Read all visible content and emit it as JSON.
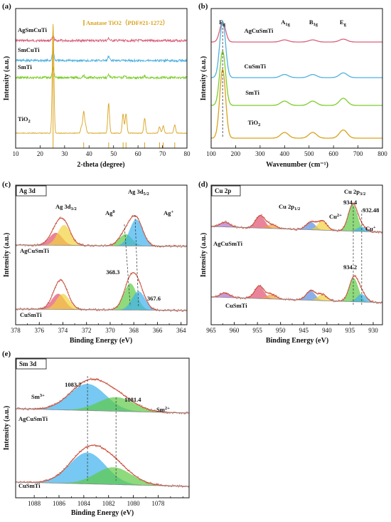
{
  "panels": {
    "a": {
      "letter": "(a)",
      "xlabel": "2-theta (degree)",
      "ylabel": "Intensity (a.u.)",
      "legend": "Anatase TiO2（PDF#21-1272）"
    },
    "b": {
      "letter": "(b)",
      "xlabel": "Wavenumber (cm⁻¹)",
      "ylabel": "Intensity (a.u.)"
    },
    "c": {
      "letter": "(c)",
      "tag": "Ag 3d",
      "xlabel": "Binding Energy (eV)",
      "ylabel": "Intensity (a.u.)"
    },
    "d": {
      "letter": "(d)",
      "tag": "Cu 2p",
      "xlabel": "Binding Energy (eV)",
      "ylabel": "Intensity (a.u.)"
    },
    "e": {
      "letter": "(e)",
      "tag": "Sm 3d",
      "xlabel": "Binding Energy (eV)",
      "ylabel": "Intensity (a.u.)"
    }
  },
  "chart_data": [
    {
      "id": "a",
      "type": "line",
      "title": "",
      "xlabel": "2-theta (degree)",
      "ylabel": "Intensity (a.u.)",
      "xlim": [
        10,
        80
      ],
      "xticks": [
        10,
        20,
        30,
        40,
        50,
        60,
        70,
        80
      ],
      "legend": "Anatase TiO2（PDF#21-1272）",
      "reference_peaks": [
        25.3,
        37.8,
        48.0,
        53.9,
        55.1,
        62.7,
        68.8,
        70.3,
        75.0
      ],
      "series": [
        {
          "name": "AgSmCuTi",
          "color": "#d9607a",
          "peaks": [
            [
              25.3,
              3
            ],
            [
              48.0,
              1.5
            ]
          ]
        },
        {
          "name": "SmCuTi",
          "color": "#4fb0e0",
          "peaks": [
            [
              25.3,
              8
            ],
            [
              48.0,
              3
            ]
          ]
        },
        {
          "name": "SmTi",
          "color": "#7ccd2a",
          "peaks": [
            [
              25.3,
              10
            ],
            [
              37.8,
              2
            ],
            [
              48.0,
              3
            ],
            [
              54.5,
              2
            ],
            [
              62.7,
              1.5
            ]
          ]
        },
        {
          "name": "TiO₂",
          "color": "#d9a21b",
          "peaks": [
            [
              25.3,
              100
            ],
            [
              36.9,
              6
            ],
            [
              37.8,
              20
            ],
            [
              38.6,
              7
            ],
            [
              48.0,
              28
            ],
            [
              53.9,
              18
            ],
            [
              55.1,
              18
            ],
            [
              62.7,
              14
            ],
            [
              68.8,
              6
            ],
            [
              70.3,
              7
            ],
            [
              75.0,
              8
            ]
          ]
        }
      ],
      "annotations": []
    },
    {
      "id": "b",
      "type": "line",
      "title": "",
      "xlabel": "Wavenumber (cm⁻¹)",
      "ylabel": "Intensity (a.u.)",
      "xlim": [
        100,
        800
      ],
      "xticks": [
        100,
        200,
        300,
        400,
        500,
        600,
        700,
        800
      ],
      "mode_labels": [
        {
          "text": "E",
          "sub": "g",
          "x": 147
        },
        {
          "text": "A",
          "sub": "1g",
          "x": 400
        },
        {
          "text": "B",
          "sub": "1g",
          "x": 515
        },
        {
          "text": "E",
          "sub": "g",
          "x": 640
        }
      ],
      "series": [
        {
          "name": "AgCuSmTi",
          "color": "#d9607a",
          "peaks": [
            [
              147,
              14
            ],
            [
              400,
              1.5
            ],
            [
              515,
              1.5
            ],
            [
              640,
              2
            ]
          ]
        },
        {
          "name": "CuSmTi",
          "color": "#4fb0e0",
          "peaks": [
            [
              147,
              36
            ],
            [
              400,
              2
            ],
            [
              515,
              2
            ],
            [
              640,
              3
            ]
          ]
        },
        {
          "name": "SmTi",
          "color": "#7ccd2a",
          "peaks": [
            [
              147,
              38
            ],
            [
              400,
              3
            ],
            [
              515,
              3
            ],
            [
              640,
              5
            ]
          ]
        },
        {
          "name": "TiO₂",
          "color": "#d9a21b",
          "peaks": [
            [
              147,
              42
            ],
            [
              400,
              3.5
            ],
            [
              515,
              3.5
            ],
            [
              640,
              5
            ]
          ]
        }
      ]
    },
    {
      "id": "c",
      "type": "line",
      "title": "Ag 3d",
      "xlabel": "Binding Energy (eV)",
      "ylabel": "Intensity (a.u.)",
      "xlim": [
        378,
        363.5
      ],
      "xticks": [
        378,
        376,
        374,
        372,
        370,
        368,
        366,
        364
      ],
      "series": [
        {
          "name": "AgCuSmTi",
          "components": [
            {
              "center": 374.6,
              "height": 16,
              "color": "#e05070"
            },
            {
              "center": 373.9,
              "height": 26,
              "color": "#f2d23c"
            },
            {
              "center": 368.7,
              "height": 15,
              "color": "#5ecb45"
            },
            {
              "center": 367.8,
              "height": 34,
              "color": "#3db0ec"
            }
          ]
        },
        {
          "name": "CuSmTi",
          "components": [
            {
              "center": 374.4,
              "height": 20,
              "color": "#e05070"
            },
            {
              "center": 374.0,
              "height": 20,
              "color": "#f2d23c"
            },
            {
              "center": 368.3,
              "height": 34,
              "color": "#5ecb45"
            },
            {
              "center": 367.6,
              "height": 24,
              "color": "#3db0ec"
            }
          ]
        }
      ],
      "annotations": [
        "Ag 3d3/2",
        "Ag 3d5/2",
        "Ag⁰",
        "Ag⁺",
        "368.3",
        "367.6"
      ]
    },
    {
      "id": "d",
      "type": "line",
      "title": "Cu 2p",
      "xlabel": "Binding Energy (eV)",
      "ylabel": "Intensity (a.u.)",
      "xlim": [
        965,
        928
      ],
      "xticks": [
        965,
        960,
        955,
        950,
        945,
        940,
        935,
        930
      ],
      "series": [
        {
          "name": "AgCuSmTi",
          "components": [
            {
              "center": 962,
              "height": 6,
              "color": "#b070d0"
            },
            {
              "center": 954.4,
              "height": 16,
              "color": "#e05070"
            },
            {
              "center": 952,
              "height": 5,
              "color": "#f2a040"
            },
            {
              "center": 943.5,
              "height": 10,
              "color": "#5a8fe0"
            },
            {
              "center": 941,
              "height": 12,
              "color": "#f2d23c"
            },
            {
              "center": 934.4,
              "height": 34,
              "color": "#5ecb45"
            },
            {
              "center": 932.5,
              "height": 6,
              "color": "#3db0ec"
            }
          ]
        },
        {
          "name": "CuSmTi",
          "components": [
            {
              "center": 962,
              "height": 6,
              "color": "#b070d0"
            },
            {
              "center": 954.6,
              "height": 16,
              "color": "#e05070"
            },
            {
              "center": 952,
              "height": 6,
              "color": "#f2a040"
            },
            {
              "center": 943.5,
              "height": 12,
              "color": "#5a8fe0"
            },
            {
              "center": 941,
              "height": 8,
              "color": "#f2d23c"
            },
            {
              "center": 934.2,
              "height": 30,
              "color": "#5ecb45"
            },
            {
              "center": 932.5,
              "height": 10,
              "color": "#3db0ec"
            }
          ]
        }
      ],
      "annotations": [
        "Cu 2p1/2",
        "Cu 2p3/2",
        "934.4",
        "Cu²⁺",
        "932.48",
        "Cu⁺",
        "934.2"
      ]
    },
    {
      "id": "e",
      "type": "line",
      "title": "Sm 3d",
      "xlabel": "Binding Energy (eV)",
      "ylabel": "Intensity (a.u.)",
      "xlim": [
        1089.5,
        1075.5
      ],
      "xticks": [
        1088,
        1086,
        1084,
        1082,
        1080,
        1078
      ],
      "series": [
        {
          "name": "AgCuSmTi",
          "components": [
            {
              "center": 1083.7,
              "height": 34,
              "color": "#3db0ec"
            },
            {
              "center": 1081.4,
              "height": 18,
              "color": "#5ecb45"
            }
          ]
        },
        {
          "name": "CuSmTi",
          "components": [
            {
              "center": 1083.7,
              "height": 40,
              "color": "#3db0ec"
            },
            {
              "center": 1081.6,
              "height": 22,
              "color": "#5ecb45"
            }
          ]
        }
      ],
      "annotations": [
        "1083.7",
        "1081.4",
        "Sm³⁺",
        "Sm²⁺"
      ]
    }
  ]
}
